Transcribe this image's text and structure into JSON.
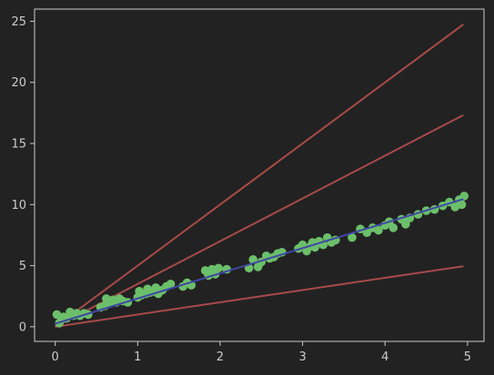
{
  "chart_data": {
    "type": "scatter",
    "title": "",
    "xlabel": "",
    "ylabel": "",
    "xlim": [
      -0.25,
      5.2
    ],
    "ylim": [
      -1.2,
      26
    ],
    "xticks": [
      0,
      1,
      2,
      3,
      4,
      5
    ],
    "yticks": [
      0,
      5,
      10,
      15,
      20,
      25
    ],
    "grid": false,
    "colors": {
      "background": "#222222",
      "scatter": "#6cbf6a",
      "fit_line": "#3f47a6",
      "guide_lines": "#a84a4a",
      "axes": "#cccccc"
    },
    "scatter": {
      "x": [
        0.02,
        0.05,
        0.08,
        0.1,
        0.14,
        0.18,
        0.2,
        0.22,
        0.26,
        0.3,
        0.35,
        0.4,
        0.55,
        0.6,
        0.62,
        0.66,
        0.7,
        0.74,
        0.78,
        0.82,
        0.88,
        1.0,
        1.02,
        1.05,
        1.1,
        1.12,
        1.15,
        1.2,
        1.22,
        1.25,
        1.3,
        1.35,
        1.4,
        1.55,
        1.6,
        1.65,
        1.82,
        1.86,
        1.9,
        1.94,
        1.98,
        2.08,
        2.35,
        2.4,
        2.46,
        2.5,
        2.56,
        2.6,
        2.65,
        2.7,
        2.75,
        2.95,
        3.0,
        3.05,
        3.1,
        3.12,
        3.15,
        3.2,
        3.25,
        3.3,
        3.35,
        3.4,
        3.6,
        3.7,
        3.78,
        3.85,
        3.92,
        4.0,
        4.05,
        4.1,
        4.2,
        4.25,
        4.3,
        4.4,
        4.5,
        4.6,
        4.7,
        4.78,
        4.85,
        4.9,
        4.93,
        4.96
      ],
      "y": [
        1.0,
        0.3,
        0.6,
        0.8,
        0.7,
        1.2,
        1.0,
        0.9,
        1.1,
        0.9,
        1.1,
        1.0,
        1.6,
        1.7,
        2.3,
        1.9,
        2.2,
        2.0,
        2.3,
        2.1,
        2.0,
        2.4,
        2.9,
        2.6,
        2.7,
        3.1,
        2.8,
        2.9,
        3.2,
        2.7,
        3.0,
        3.3,
        3.5,
        3.3,
        3.6,
        3.4,
        4.6,
        4.2,
        4.7,
        4.3,
        4.8,
        4.7,
        4.8,
        5.5,
        4.9,
        5.3,
        5.8,
        5.6,
        5.7,
        6.0,
        6.1,
        6.4,
        6.7,
        6.2,
        6.6,
        6.9,
        6.5,
        7.0,
        6.7,
        7.3,
        6.9,
        7.1,
        7.3,
        8.0,
        7.7,
        8.1,
        7.9,
        8.3,
        8.6,
        8.1,
        8.8,
        8.4,
        8.9,
        9.2,
        9.5,
        9.6,
        9.9,
        10.2,
        9.8,
        10.4,
        10.0,
        10.7
      ]
    },
    "fit_line": {
      "slope": 2.06,
      "intercept": 0.25,
      "x_range": [
        0,
        4.95
      ]
    },
    "guide_lines": [
      {
        "slope": 5.0,
        "intercept": 0,
        "x_range": [
          0,
          4.95
        ]
      },
      {
        "slope": 3.5,
        "intercept": 0,
        "x_range": [
          0,
          4.95
        ]
      },
      {
        "slope": 1.0,
        "intercept": 0,
        "x_range": [
          0,
          4.95
        ]
      }
    ]
  }
}
